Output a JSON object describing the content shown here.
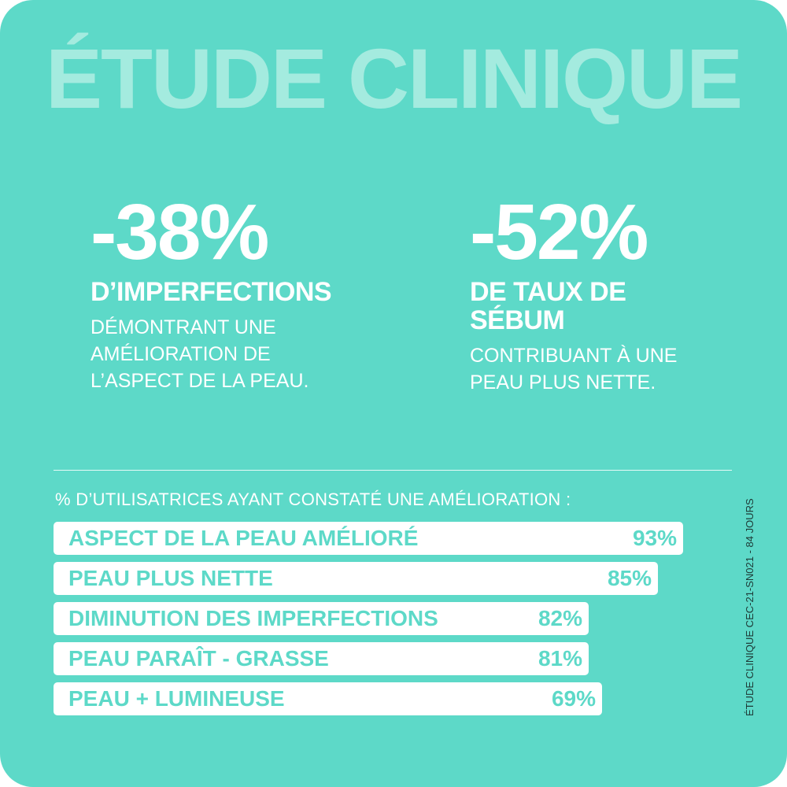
{
  "header": {
    "title": "ÉTUDE CLINIQUE"
  },
  "stats": [
    {
      "value": "-38%",
      "label_lines": [
        "D’IMPERFECTIONS"
      ],
      "description_lines": [
        "DÉMONTRANT UNE",
        "AMÉLIORATION DE",
        "L’ASPECT DE LA PEAU."
      ]
    },
    {
      "value": "-52%",
      "label_lines": [
        "DE TAUX DE",
        "SÉBUM"
      ],
      "description_lines": [
        "CONTRIBUANT À UNE",
        "PEAU PLUS NETTE."
      ]
    }
  ],
  "survey": {
    "title": "% D’UTILISATRICES AYANT CONSTATÉ UNE AMÉLIORATION :",
    "rows": [
      {
        "label": "ASPECT DE LA PEAU AMÉLIORÉ",
        "value": "93%"
      },
      {
        "label": "PEAU PLUS NETTE",
        "value": "85%"
      },
      {
        "label": "DIMINUTION DES IMPERFECTIONS",
        "value": "82%"
      },
      {
        "label": "PEAU PARAÎT - GRASSE",
        "value": "81%"
      },
      {
        "label": "PEAU + LUMINEUSE",
        "value": "69%"
      }
    ]
  },
  "footnote": "ÉTUDE CLINIQUE CEC-21-SN021 - 84 JOURS"
}
